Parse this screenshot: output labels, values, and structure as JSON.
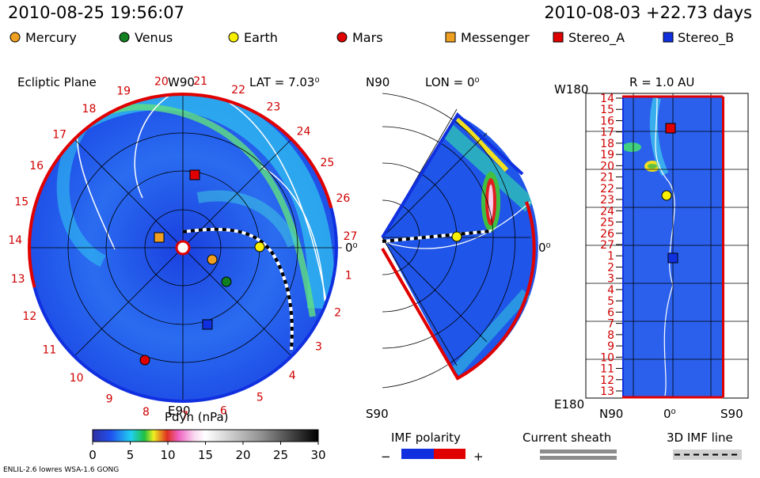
{
  "header": {
    "time": "2010-08-25 19:56:07",
    "run": "2010-08-03 +22.73 days"
  },
  "legend": [
    "Mercury",
    "Venus",
    "Earth",
    "Mars",
    "Messenger",
    "Stereo_A",
    "Stereo_B"
  ],
  "ecliptic": {
    "title": "Ecliptic Plane",
    "top": "W90",
    "lat": "LAT = 7.03⁰",
    "right": "0⁰",
    "bottom": "E90",
    "days": [
      "1",
      "2",
      "3",
      "4",
      "5",
      "6",
      "7",
      "8",
      "9",
      "10",
      "11",
      "12",
      "13",
      "14",
      "15",
      "16",
      "17",
      "18",
      "19",
      "20",
      "21",
      "22",
      "23",
      "24",
      "25",
      "26",
      "27"
    ]
  },
  "meridional": {
    "top": "N90",
    "lon": "LON = 0⁰",
    "right": "0⁰",
    "bottom": "S90"
  },
  "radial": {
    "title": "R = 1.0 AU",
    "top": "W180",
    "bottom": "E180",
    "left": "N90",
    "center": "0⁰",
    "right": "S90",
    "days": [
      "14",
      "15",
      "16",
      "17",
      "18",
      "19",
      "20",
      "21",
      "22",
      "23",
      "24",
      "25",
      "26",
      "27",
      "1",
      "2",
      "3",
      "4",
      "5",
      "6",
      "7",
      "8",
      "9",
      "10",
      "11",
      "12",
      "13"
    ]
  },
  "colorbar": {
    "title": "Pdyn (nPa)",
    "range": [
      0,
      30
    ],
    "ticks": [
      0,
      5,
      10,
      15,
      20,
      25,
      30
    ]
  },
  "key": {
    "polarity": "IMF polarity",
    "minus": "−",
    "plus": "+",
    "sheath": "Current sheath",
    "imf": "3D IMF line"
  },
  "footer": "ENLIL-2.6 lowres WSA-1.6 GONG"
}
